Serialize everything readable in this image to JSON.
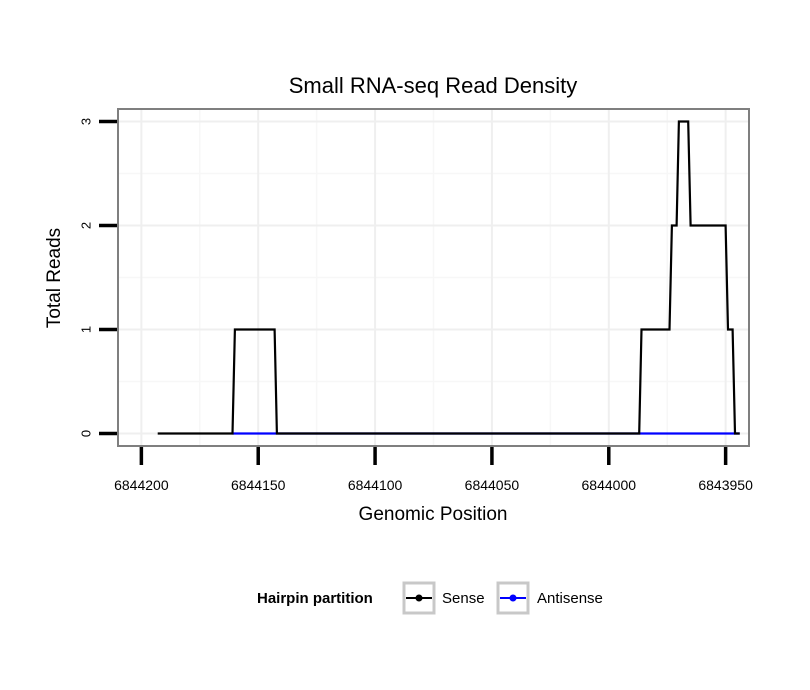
{
  "chart_data": {
    "type": "line",
    "title": "Small RNA-seq Read Density",
    "xlabel": "Genomic Position",
    "ylabel": "Total Reads",
    "xlim": [
      6844210,
      6843940
    ],
    "ylim": [
      -0.12,
      3.12
    ],
    "x_reversed": true,
    "x_ticks": [
      6844200,
      6844150,
      6844100,
      6844050,
      6844000,
      6843950
    ],
    "x_tick_labels": [
      "6844200",
      "6844150",
      "6844100",
      "6844050",
      "6844000",
      "6843950"
    ],
    "y_ticks": [
      0,
      1,
      2,
      3
    ],
    "y_tick_labels": [
      "0",
      "1",
      "2",
      "3"
    ],
    "grid": true,
    "legend_title": "Hairpin partition",
    "legend_position": "bottom",
    "series": [
      {
        "name": "Sense",
        "color": "#000000",
        "x": [
          6844193,
          6844161,
          6844160,
          6844143,
          6844142,
          6843987,
          6843986,
          6843974,
          6843973,
          6843971,
          6843970,
          6843966,
          6843965,
          6843950,
          6843949,
          6843947,
          6843946,
          6843944
        ],
        "y": [
          0,
          0,
          1,
          1,
          0,
          0,
          1,
          1,
          2,
          2,
          3,
          3,
          2,
          2,
          1,
          1,
          0,
          0
        ]
      },
      {
        "name": "Antisense",
        "color": "#0000ff",
        "x": [
          6844161,
          6844142,
          6843987,
          6843944
        ],
        "y": [
          0,
          0,
          0,
          0
        ]
      }
    ]
  }
}
